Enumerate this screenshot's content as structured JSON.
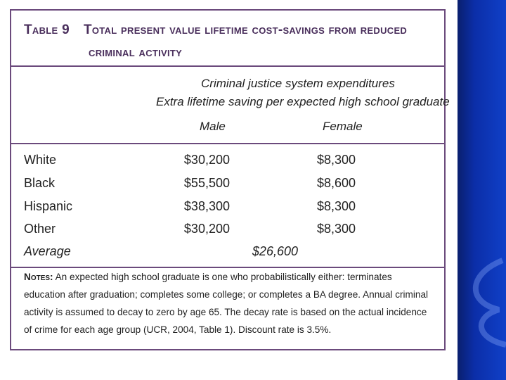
{
  "table": {
    "number": "Table 9",
    "title_line1": "Total present value lifetime cost-savings from reduced",
    "title_line2": "criminal activity",
    "header_line1": "Criminal justice system expenditures",
    "header_line2": "Extra lifetime saving per expected high school graduate",
    "col_male": "Male",
    "col_female": "Female",
    "rows": [
      {
        "label": "White",
        "male": "$30,200",
        "female": "$8,300"
      },
      {
        "label": "Black",
        "male": "$55,500",
        "female": "$8,600"
      },
      {
        "label": "Hispanic",
        "male": "$38,300",
        "female": "$8,300"
      },
      {
        "label": "Other",
        "male": "$30,200",
        "female": "$8,300"
      }
    ],
    "average_label": "Average",
    "average_value": "$26,600",
    "notes_label": "Notes:",
    "notes_text": " An expected high school graduate is one who probabilistically either: terminates education after graduation; completes some college; or completes a BA degree. Annual criminal activity is assumed to decay to zero by age 65. The decay rate is based on the actual incidence of crime for each age group (UCR, 2004, Table 1). Discount rate is 3.5%."
  },
  "colors": {
    "border": "#6b4a7c",
    "title": "#4a2f5c",
    "band": "#0b2ea8"
  }
}
